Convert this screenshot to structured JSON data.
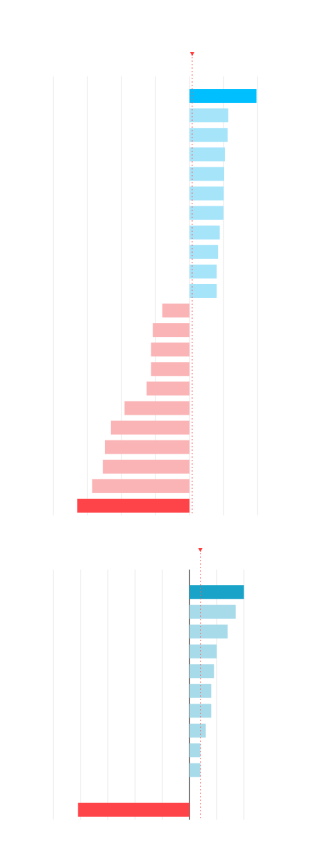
{
  "chart_data": [
    {
      "type": "bar",
      "orientation": "horizontal",
      "title": "",
      "xlabel": "",
      "ylabel": "",
      "grid": true,
      "xlim": [
        -4,
        2
      ],
      "reference_line": 0.08,
      "highlight_positive_color": "#00bfff",
      "positive_color": "#a6e4fa",
      "negative_color": "#fbb4b6",
      "highlight_negative_color": "#ff4449",
      "values": [
        1.97,
        1.14,
        1.12,
        1.04,
        1.02,
        1.01,
        1.0,
        0.89,
        0.84,
        0.8,
        0.8,
        -0.8,
        -1.08,
        -1.13,
        -1.13,
        -1.26,
        -1.91,
        -2.31,
        -2.49,
        -2.55,
        -2.86,
        -3.3
      ]
    },
    {
      "type": "bar",
      "orientation": "horizontal",
      "title": "",
      "xlabel": "",
      "ylabel": "",
      "grid": true,
      "xlim": [
        -5,
        2.5
      ],
      "reference_line": 0.4,
      "highlight_positive_color": "#1aa3c8",
      "positive_color": "#a8dbea",
      "highlight_negative_color": "#ff4449",
      "values": [
        2.0,
        1.7,
        1.4,
        1.0,
        0.9,
        0.8,
        0.8,
        0.6,
        0.4,
        0.4,
        null,
        -4.1
      ]
    }
  ]
}
